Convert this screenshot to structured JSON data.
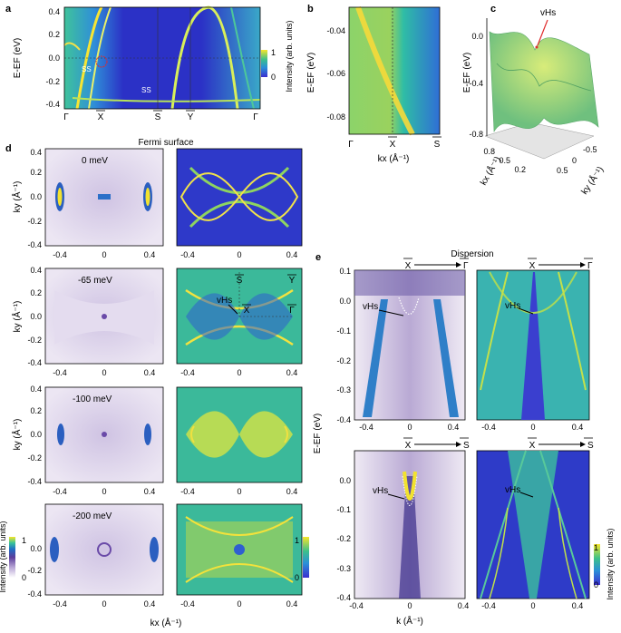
{
  "figure": {
    "panel_letters": [
      "a",
      "b",
      "c",
      "d",
      "e"
    ],
    "panel_a": {
      "ylabel": "E-EF (eV)",
      "yticks": [
        "0.4",
        "0.2",
        "0.0",
        "-0.2",
        "-0.4"
      ],
      "xticks": [
        "Γ",
        "X",
        "S",
        "Y",
        "Γ"
      ],
      "annotations": [
        "SS",
        "SS"
      ],
      "colorbar": {
        "label": "Intensity (arb. units)",
        "max": "1",
        "min": "0"
      }
    },
    "panel_b": {
      "ylabel": "E-EF (eV)",
      "yticks": [
        "-0.04",
        "-0.06",
        "-0.08"
      ],
      "xticks": [
        "Γ",
        "X",
        "S"
      ],
      "xlabel": "kx (Å⁻¹)"
    },
    "panel_c": {
      "zlabel": "E-EF (eV)",
      "zticks": [
        "0.0",
        "-0.4",
        "-0.8"
      ],
      "annotation": "vHs",
      "kx_ticks": [
        "0.8",
        "0.5",
        "0.2"
      ],
      "ky_ticks": [
        "-0.5",
        "0",
        "0.5"
      ],
      "kx_label": "kx (Å⁻¹)",
      "ky_label": "ky (Å⁻¹)"
    },
    "panel_d": {
      "title": "Fermi surface",
      "ylabel": "ky (Å⁻¹)",
      "xlabel": "kx (Å⁻¹)",
      "yticks": [
        "0.4",
        "0.2",
        "0.0",
        "-0.2",
        "-0.4"
      ],
      "xticks": [
        "-0.4",
        "0",
        "0.4"
      ],
      "energies": [
        "0 meV",
        "-65 meV",
        "-100 meV",
        "-200 meV"
      ],
      "hs_labels": [
        "S",
        "Y",
        "X",
        "Γ"
      ],
      "annotation": "vHs",
      "colorbar_left": {
        "label": "Intensity (arb. units)",
        "max": "1",
        "min": "0"
      },
      "colorbar_right": {
        "max": "1",
        "min": "0"
      }
    },
    "panel_e": {
      "title": "Dispersion",
      "ylabel": "E-EF (eV)",
      "xlabel": "k (Å⁻¹)",
      "yticks": [
        "0.1",
        "0.0",
        "-0.1",
        "-0.2",
        "-0.3",
        "-0.4"
      ],
      "xticks_top": [
        "-0.4",
        "0",
        "0.4"
      ],
      "xticks_bottom": [
        "-0.4",
        "0",
        "0.4"
      ],
      "cuts": [
        {
          "from": "X",
          "to": "Γ"
        },
        {
          "from": "X",
          "to": "Γ"
        },
        {
          "from": "X",
          "to": "S"
        },
        {
          "from": "X",
          "to": "S"
        }
      ],
      "annotation": "vHs",
      "colorbar": {
        "label": "Intensity (arb. units)",
        "max": "1",
        "min": "0"
      }
    }
  }
}
